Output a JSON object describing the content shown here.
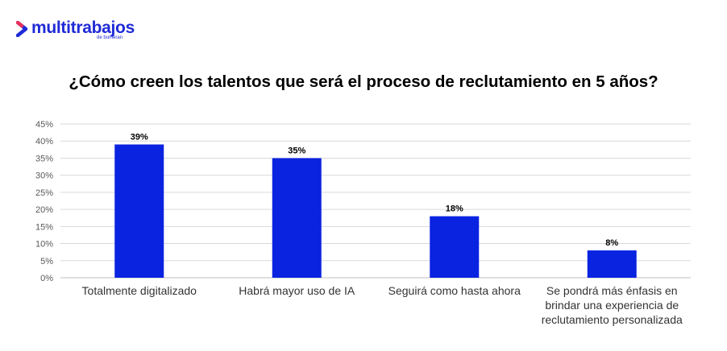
{
  "brand": {
    "name": "multitrabajos",
    "sub": "de bumeran",
    "color": "#1f2ad6"
  },
  "chart_data": {
    "type": "bar",
    "title": "¿Cómo creen los talentos que será el proceso de reclutamiento en 5 años?",
    "categories": [
      "Totalmente digitalizado",
      "Habrá mayor uso de IA",
      "Seguirá como hasta ahora",
      "Se pondrá más énfasis en brindar una experiencia de reclutamiento personalizada"
    ],
    "values": [
      39,
      35,
      18,
      8
    ],
    "data_labels": [
      "39%",
      "35%",
      "18%",
      "8%"
    ],
    "ylim": [
      0,
      45
    ],
    "yticks": [
      "0%",
      "5%",
      "10%",
      "15%",
      "20%",
      "25%",
      "30%",
      "35%",
      "40%",
      "45%"
    ],
    "xlabel": "",
    "ylabel": "",
    "grid": true,
    "bar_color": "#0a23e0"
  }
}
